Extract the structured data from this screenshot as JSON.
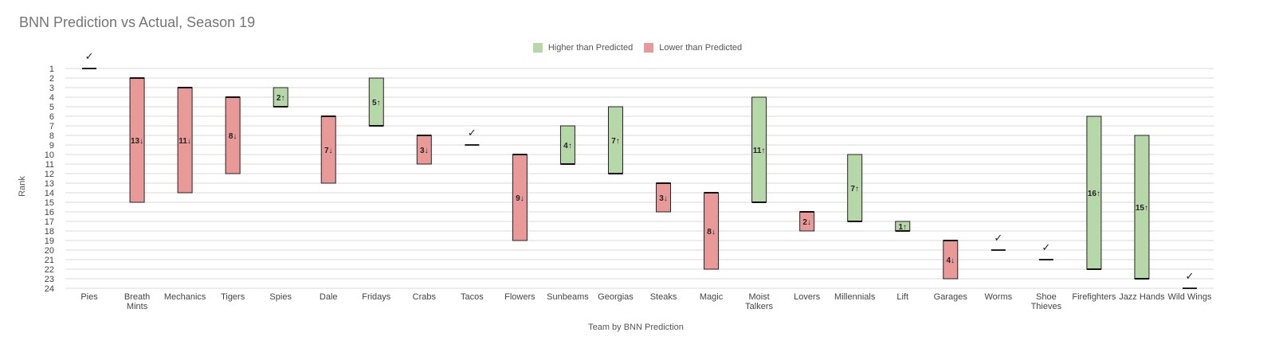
{
  "chart_data": {
    "type": "bar",
    "title": "BNN Prediction vs Actual, Season 19",
    "xlabel": "Team by BNN Prediction",
    "ylabel": "Rank",
    "ylim": [
      24,
      1
    ],
    "y_ticks": [
      1,
      2,
      3,
      4,
      5,
      6,
      7,
      8,
      9,
      10,
      11,
      12,
      13,
      14,
      15,
      16,
      17,
      18,
      19,
      20,
      21,
      22,
      23,
      24
    ],
    "legend": [
      {
        "label": "Higher than Predicted",
        "color": "#b6d7a8"
      },
      {
        "label": "Lower than Predicted",
        "color": "#ea9999"
      }
    ],
    "check_mark": "✓",
    "categories": [
      "Pies",
      "Breath Mints",
      "Mechanics",
      "Tigers",
      "Spies",
      "Dale",
      "Fridays",
      "Crabs",
      "Tacos",
      "Flowers",
      "Sunbeams",
      "Georgias",
      "Steaks",
      "Magic",
      "Moist Talkers",
      "Lovers",
      "Millennials",
      "Lift",
      "Garages",
      "Worms",
      "Shoe Thieves",
      "Firefighters",
      "Jazz Hands",
      "Wild Wings"
    ],
    "predicted": [
      1,
      2,
      3,
      4,
      5,
      6,
      7,
      8,
      9,
      10,
      11,
      12,
      13,
      14,
      15,
      16,
      17,
      18,
      19,
      20,
      21,
      22,
      23,
      24
    ],
    "actual": [
      1,
      15,
      14,
      12,
      3,
      13,
      2,
      11,
      9,
      19,
      7,
      5,
      16,
      22,
      4,
      18,
      10,
      17,
      23,
      20,
      21,
      6,
      8,
      24
    ],
    "labels": [
      "",
      "13↓",
      "11↓",
      "8↓",
      "2↑",
      "7↓",
      "5↑",
      "3↓",
      "",
      "9↓",
      "4↑",
      "7↑",
      "3↓",
      "8↓",
      "11↑",
      "2↓",
      "7↑",
      "1↑",
      "4↓",
      "",
      "",
      "16↑",
      "15↑",
      ""
    ],
    "grid": true,
    "legend_position": "top"
  }
}
